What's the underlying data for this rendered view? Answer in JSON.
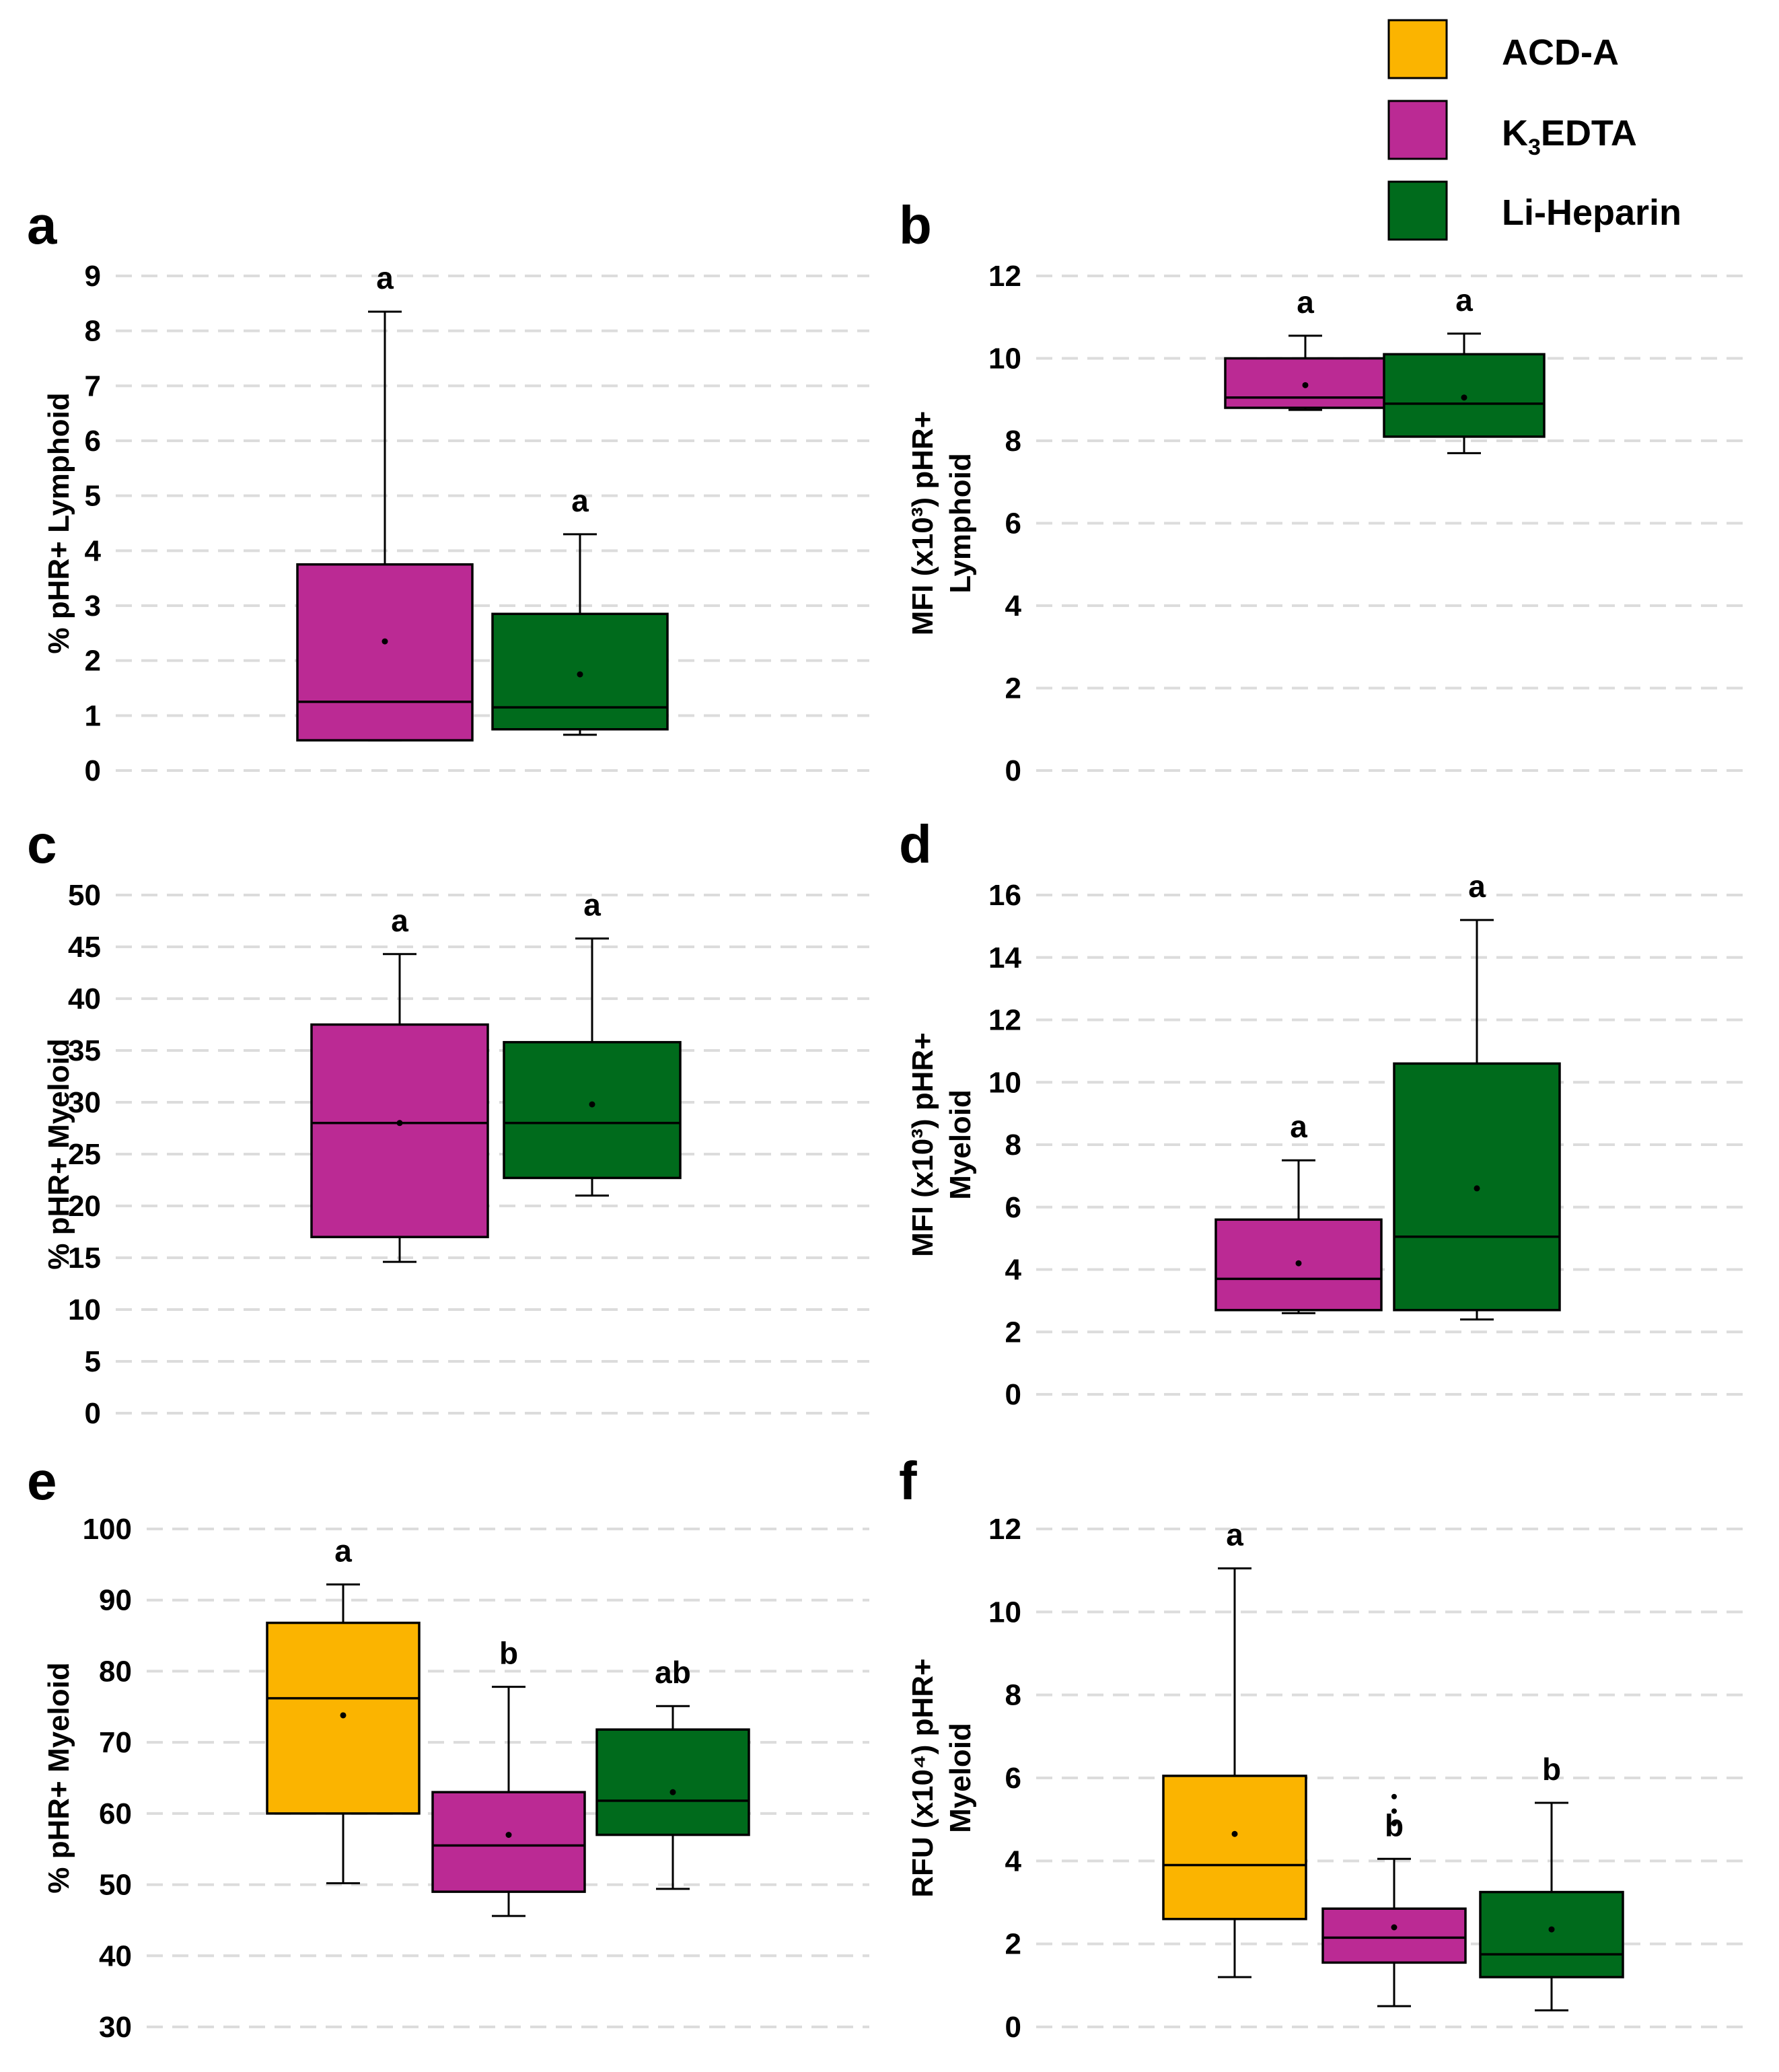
{
  "legend": [
    {
      "label": "ACD-A",
      "color": "#FBB400"
    },
    {
      "label_main": "K",
      "label_sub": "3",
      "label_rest": "EDTA",
      "color": "#BB2A94"
    },
    {
      "label": "Li-Heparin",
      "color": "#006B1C"
    }
  ],
  "chart_data": [
    {
      "panel": "a",
      "type": "box",
      "ylabel": [
        "% pHR+ Lymphoid"
      ],
      "ylim": [
        0,
        9
      ],
      "yticks": [
        0,
        1,
        2,
        3,
        4,
        5,
        6,
        7,
        8,
        9
      ],
      "groups": [
        {
          "name": "K3EDTA",
          "color": "#BB2A94",
          "min": 0.55,
          "q1": 0.55,
          "median": 1.25,
          "q3": 3.75,
          "max": 8.35,
          "mean": 2.35,
          "outliers": [],
          "label": "a"
        },
        {
          "name": "Li-Heparin",
          "color": "#006B1C",
          "min": 0.65,
          "q1": 0.75,
          "median": 1.15,
          "q3": 2.85,
          "max": 4.3,
          "mean": 1.75,
          "outliers": [],
          "label": "a"
        }
      ]
    },
    {
      "panel": "b",
      "type": "box",
      "ylabel": [
        "MFI (x10³) pHR+",
        "Lymphoid"
      ],
      "ylim": [
        0,
        12
      ],
      "yticks": [
        0,
        2,
        4,
        6,
        8,
        10,
        12
      ],
      "groups": [
        {
          "name": "K3EDTA",
          "color": "#BB2A94",
          "min": 8.75,
          "q1": 8.8,
          "median": 9.05,
          "q3": 10.0,
          "max": 10.55,
          "mean": 9.35,
          "outliers": [],
          "label": "a"
        },
        {
          "name": "Li-Heparin",
          "color": "#006B1C",
          "min": 7.7,
          "q1": 8.1,
          "median": 8.9,
          "q3": 10.1,
          "max": 10.6,
          "mean": 9.05,
          "outliers": [],
          "label": "a"
        }
      ]
    },
    {
      "panel": "c",
      "type": "box",
      "ylabel": [
        "% pHR+ Myeloid"
      ],
      "ylim": [
        0,
        50
      ],
      "yticks": [
        0,
        5,
        10,
        15,
        20,
        25,
        30,
        35,
        40,
        45,
        50
      ],
      "groups": [
        {
          "name": "K3EDTA",
          "color": "#BB2A94",
          "min": 14.6,
          "q1": 17.0,
          "median": 28.0,
          "q3": 37.5,
          "max": 44.3,
          "mean": 28.0,
          "outliers": [],
          "label": "a"
        },
        {
          "name": "Li-Heparin",
          "color": "#006B1C",
          "min": 21.0,
          "q1": 22.7,
          "median": 28.0,
          "q3": 35.8,
          "max": 45.8,
          "mean": 29.8,
          "outliers": [],
          "label": "a"
        }
      ]
    },
    {
      "panel": "d",
      "type": "box",
      "ylabel": [
        "MFI (x10³) pHR+",
        "Myeloid"
      ],
      "ylim": [
        0,
        16
      ],
      "yticks": [
        0,
        2,
        4,
        6,
        8,
        10,
        12,
        14,
        16
      ],
      "groups": [
        {
          "name": "K3EDTA",
          "color": "#BB2A94",
          "min": 2.6,
          "q1": 2.7,
          "median": 3.7,
          "q3": 5.6,
          "max": 7.5,
          "mean": 4.2,
          "outliers": [],
          "label": "a"
        },
        {
          "name": "Li-Heparin",
          "color": "#006B1C",
          "min": 2.4,
          "q1": 2.7,
          "median": 5.05,
          "q3": 10.6,
          "max": 15.2,
          "mean": 6.6,
          "outliers": [],
          "label": "a"
        }
      ]
    },
    {
      "panel": "e",
      "type": "box",
      "ylabel": [
        "% pHR+ Myeloid"
      ],
      "ylim": [
        30,
        100
      ],
      "yticks": [
        30,
        40,
        50,
        60,
        70,
        80,
        90,
        100
      ],
      "groups": [
        {
          "name": "ACD-A",
          "color": "#FBB400",
          "min": 50.2,
          "q1": 60.0,
          "median": 76.2,
          "q3": 86.8,
          "max": 92.2,
          "mean": 73.8,
          "outliers": [],
          "label": "a"
        },
        {
          "name": "K3EDTA",
          "color": "#BB2A94",
          "min": 45.6,
          "q1": 49.0,
          "median": 55.5,
          "q3": 63.0,
          "max": 77.8,
          "mean": 57.0,
          "outliers": [],
          "label": "b"
        },
        {
          "name": "Li-Heparin",
          "color": "#006B1C",
          "min": 49.4,
          "q1": 57.0,
          "median": 61.8,
          "q3": 71.8,
          "max": 75.1,
          "mean": 63.0,
          "outliers": [],
          "label": "ab"
        }
      ]
    },
    {
      "panel": "f",
      "type": "box",
      "ylabel": [
        "RFU (x10⁴) pHR+",
        "Myeloid"
      ],
      "ylim": [
        0,
        12
      ],
      "yticks": [
        0,
        2,
        4,
        6,
        8,
        10,
        12
      ],
      "groups": [
        {
          "name": "ACD-A",
          "color": "#FBB400",
          "min": 1.2,
          "q1": 2.6,
          "median": 3.9,
          "q3": 6.05,
          "max": 11.05,
          "mean": 4.65,
          "outliers": [],
          "label": "a"
        },
        {
          "name": "K3EDTA",
          "color": "#BB2A94",
          "min": 0.5,
          "q1": 1.55,
          "median": 2.15,
          "q3": 2.85,
          "max": 4.05,
          "mean": 2.4,
          "outliers": [
            4.9,
            5.2,
            5.55
          ],
          "label": "b"
        },
        {
          "name": "Li-Heparin",
          "color": "#006B1C",
          "min": 0.4,
          "q1": 1.2,
          "median": 1.75,
          "q3": 3.25,
          "max": 5.4,
          "mean": 2.35,
          "outliers": [],
          "label": "b"
        }
      ]
    }
  ]
}
